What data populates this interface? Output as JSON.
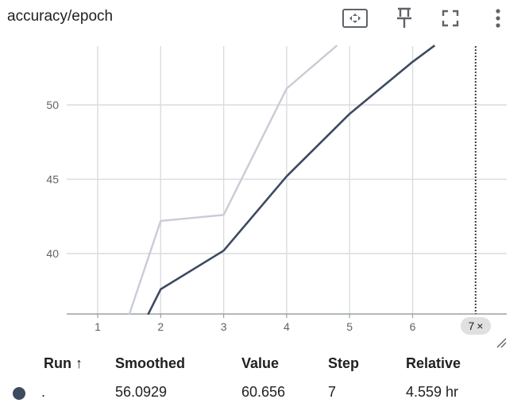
{
  "header": {
    "title": "accuracy/epoch",
    "icons": [
      "fit-domain-icon",
      "pin-icon",
      "fullscreen-icon",
      "more-vert-icon"
    ]
  },
  "chart_data": {
    "type": "line",
    "title": "",
    "xlabel": "",
    "ylabel": "",
    "x_ticks": [
      "1",
      "2",
      "3",
      "4",
      "5",
      "6"
    ],
    "y_ticks": [
      "40",
      "45",
      "50"
    ],
    "xlim": [
      0.5,
      7.5
    ],
    "ylim": [
      35.9,
      54.0
    ],
    "grid": true,
    "series": [
      {
        "role": "raw",
        "color": "#c8ccd6",
        "points": [
          [
            1.5,
            35.9
          ],
          [
            2,
            42.2
          ],
          [
            3,
            42.6
          ],
          [
            4,
            51.1
          ],
          [
            4.8,
            54.0
          ]
        ]
      },
      {
        "role": "smoothed",
        "color": "#3d4a60",
        "points": [
          [
            1.8,
            35.9
          ],
          [
            2,
            37.6
          ],
          [
            3,
            40.2
          ],
          [
            4,
            45.2
          ],
          [
            5,
            49.4
          ],
          [
            6,
            52.9
          ],
          [
            6.35,
            54.0
          ]
        ]
      }
    ],
    "cursor_step": "7",
    "cursor_step_close": "×"
  },
  "table": {
    "headers": {
      "run": "Run ↑",
      "smoothed": "Smoothed",
      "value": "Value",
      "step": "Step",
      "relative": "Relative"
    },
    "row": {
      "color": "#3d4a60",
      "run": ".",
      "smoothed": "56.0929",
      "value": "60.656",
      "step": "7",
      "relative": "4.559 hr"
    }
  }
}
